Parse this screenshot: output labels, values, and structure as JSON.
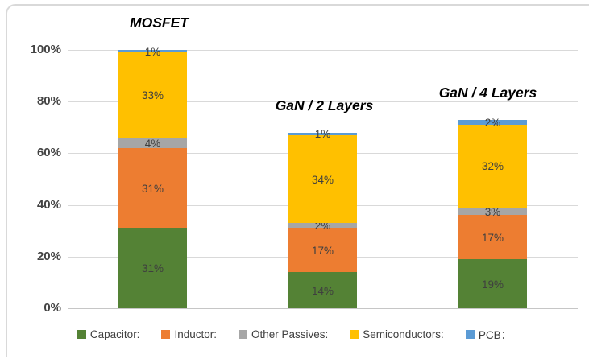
{
  "chart": {
    "background_color": "#FFFFFF",
    "frame_color": "#D9D9D9"
  },
  "chart_data": {
    "type": "bar",
    "stacked": true,
    "orientation": "vertical",
    "categories": [
      "MOSFET",
      "GaN / 2 Layers",
      "GaN / 4 Layers"
    ],
    "series": [
      {
        "name": "Capacitor:",
        "color": "#548235",
        "values": [
          31,
          14,
          19
        ]
      },
      {
        "name": "Inductor:",
        "color": "#ED7D31",
        "values": [
          31,
          17,
          17
        ]
      },
      {
        "name": "Other Passives:",
        "color": "#A6A6A6",
        "values": [
          4,
          2,
          3
        ]
      },
      {
        "name": "Semiconductors:",
        "color": "#FFC000",
        "values": [
          33,
          34,
          32
        ]
      },
      {
        "name": "PCB：",
        "color": "#5B9BD5",
        "values": [
          1,
          1,
          2
        ]
      }
    ],
    "stack_totals": [
      100,
      68,
      73
    ],
    "value_suffix": "%",
    "data_labels": [
      [
        "31%",
        "14%",
        "19%"
      ],
      [
        "31%",
        "17%",
        "17%"
      ],
      [
        "4%",
        "2%",
        "3%"
      ],
      [
        "33%",
        "34%",
        "32%"
      ],
      [
        "1%",
        "1%",
        "2%"
      ]
    ],
    "ylim": [
      0,
      100
    ],
    "y_ticks": [
      0,
      20,
      40,
      60,
      80,
      100
    ],
    "y_tick_labels": [
      "0%",
      "20%",
      "40%",
      "60%",
      "80%",
      "100%"
    ],
    "grid": true,
    "gridline_color": "#D9D9D9",
    "legend_position": "bottom",
    "legend_labels": [
      "Capacitor:",
      "Inductor:",
      "Other Passives:",
      "Semiconductors:",
      "PCB："
    ]
  }
}
